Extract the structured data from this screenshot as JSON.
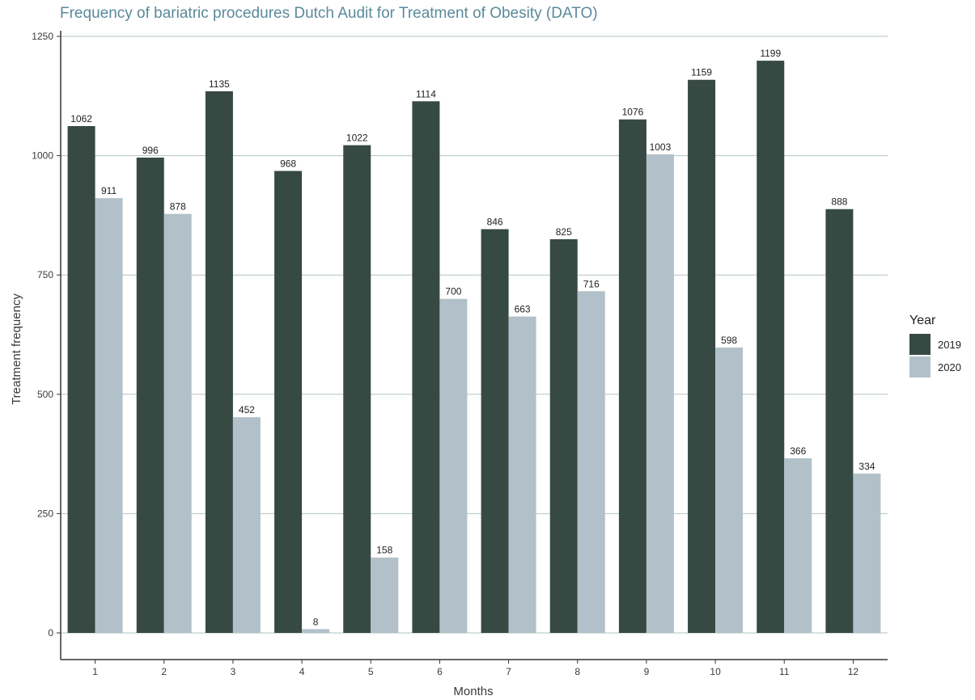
{
  "chart_data": {
    "type": "bar",
    "title": "Frequency of bariatric procedures Dutch Audit for Treatment of Obesity (DATO)",
    "xlabel": "Months",
    "ylabel": "Treatment frequency",
    "categories": [
      "1",
      "2",
      "3",
      "4",
      "5",
      "6",
      "7",
      "8",
      "9",
      "10",
      "11",
      "12"
    ],
    "series": [
      {
        "name": "2019",
        "color": "#374943",
        "values": [
          1062,
          996,
          1135,
          968,
          1022,
          1114,
          846,
          825,
          1076,
          1159,
          1199,
          888
        ]
      },
      {
        "name": "2020",
        "color": "#b2c1c9",
        "values": [
          911,
          878,
          452,
          8,
          158,
          700,
          663,
          716,
          1003,
          598,
          366,
          334
        ]
      }
    ],
    "ylim": [
      0,
      1250
    ],
    "yticks": [
      0,
      250,
      500,
      750,
      1000,
      1250
    ],
    "grid": "horizontal",
    "legend": {
      "title": "Year",
      "position": "right"
    }
  }
}
